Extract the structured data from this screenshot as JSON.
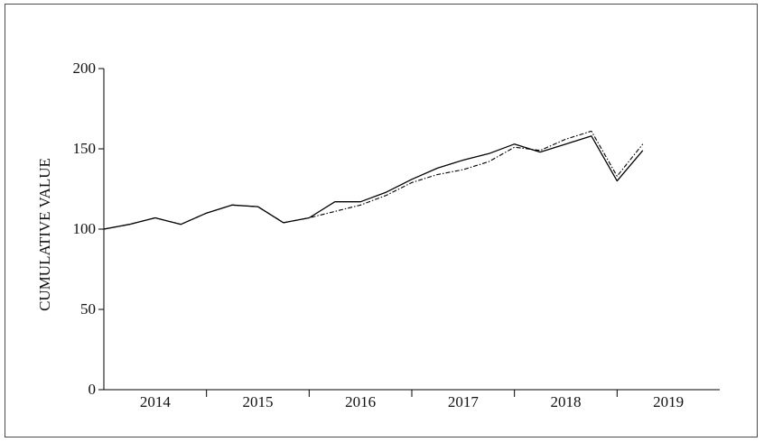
{
  "chart_data": {
    "type": "line",
    "title": "",
    "xlabel": "",
    "ylabel": "CUMULATIVE VALUE",
    "ylim": [
      0,
      200
    ],
    "yticks": [
      0,
      50,
      100,
      150,
      200
    ],
    "xlim": [
      2013.5,
      2019.5
    ],
    "xtick_labels": [
      "2014",
      "2015",
      "2016",
      "2017",
      "2018",
      "2019"
    ],
    "grid": false,
    "legend": "none",
    "series": [
      {
        "style": "solid",
        "color": "#000000",
        "x": [
          2013.5,
          2013.75,
          2014.0,
          2014.25,
          2014.5,
          2014.75,
          2015.0,
          2015.25,
          2015.5,
          2015.75,
          2016.0,
          2016.25,
          2016.5,
          2016.75,
          2017.0,
          2017.25,
          2017.5,
          2017.75,
          2018.0,
          2018.25,
          2018.5,
          2018.75
        ],
        "y": [
          100,
          103,
          107,
          103,
          110,
          115,
          114,
          104,
          107,
          117,
          117,
          123,
          131,
          138,
          143,
          147,
          153,
          148,
          153,
          158,
          130,
          149
        ]
      },
      {
        "style": "dash-dot",
        "color": "#000000",
        "x": [
          2013.5,
          2013.75,
          2014.0,
          2014.25,
          2014.5,
          2014.75,
          2015.0,
          2015.25,
          2015.5,
          2015.75,
          2016.0,
          2016.25,
          2016.5,
          2016.75,
          2017.0,
          2017.25,
          2017.5,
          2017.75,
          2018.0,
          2018.25,
          2018.5,
          2018.75
        ],
        "y": [
          100,
          103,
          107,
          103,
          110,
          115,
          114,
          104,
          107,
          111,
          115,
          121,
          129,
          134,
          137,
          142,
          151,
          149,
          156,
          161,
          133,
          153
        ]
      }
    ]
  }
}
